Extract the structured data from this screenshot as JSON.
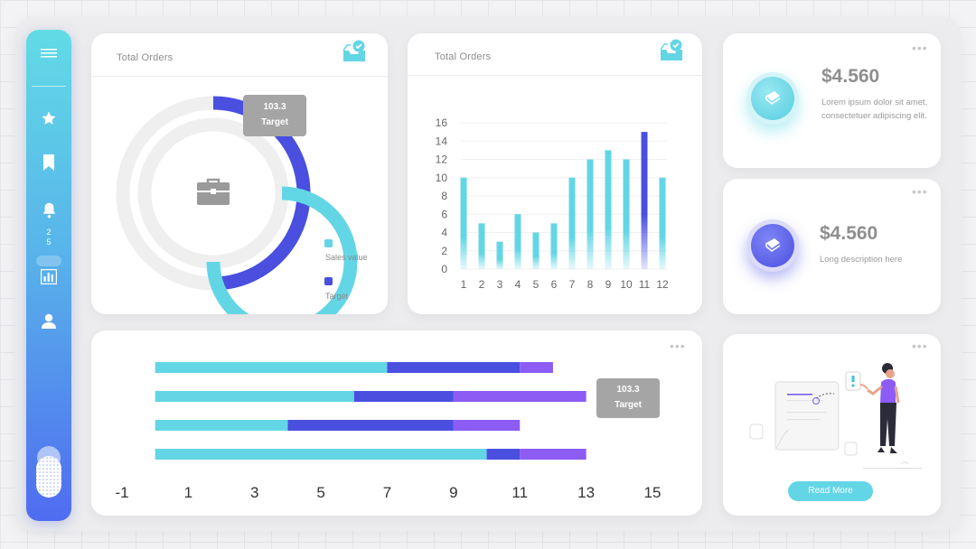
{
  "sidebar": {
    "icons": [
      "menu-icon",
      "star-icon",
      "bookmark-icon",
      "bell-icon",
      "bar-chart-icon",
      "user-icon"
    ],
    "badge": [
      "2",
      "5"
    ]
  },
  "orders_donut": {
    "title": "Total Orders",
    "icon": "inbox-check-icon",
    "center_icon": "briefcase-icon",
    "tooltip": {
      "value": "103.3",
      "label": "Target"
    },
    "legend": [
      {
        "label": "Sales value",
        "color": "#63d6e6"
      },
      {
        "label": "Target",
        "color": "#4a4fe0"
      }
    ]
  },
  "orders_bar": {
    "title": "Total Orders",
    "icon": "inbox-check-icon"
  },
  "stat_cards": [
    {
      "price": "$4.560",
      "description": "Lorem ipsum dolor sit amet, consectetuer adipiscing elit.",
      "icon": "book-icon"
    },
    {
      "price": "$4.560",
      "description": "Long description here",
      "icon": "book-icon"
    }
  ],
  "hbar_card": {
    "tooltip": {
      "value": "103.3",
      "label": "Target"
    }
  },
  "illustration_card": {
    "button_label": "Read More"
  },
  "colors": {
    "cyan": "#63d6e6",
    "blue": "#4a4fe0",
    "purple": "#8c5cf5",
    "grey": "#a5a5a5"
  },
  "chart_data": [
    {
      "type": "bar",
      "categories": [
        "1",
        "2",
        "3",
        "4",
        "5",
        "6",
        "7",
        "8",
        "9",
        "10",
        "11",
        "12"
      ],
      "values": [
        10,
        5,
        3,
        6,
        4,
        5,
        10,
        12,
        13,
        12,
        15,
        10
      ],
      "highlight_index": 10,
      "ylim": [
        0,
        16
      ],
      "yticks": [
        "0",
        "2",
        "4",
        "6",
        "8",
        "10",
        "12",
        "14",
        "16"
      ],
      "grid": true
    },
    {
      "type": "bar",
      "orientation": "horizontal",
      "stacked": true,
      "xlim": [
        -1,
        15
      ],
      "xticks": [
        "-1",
        "1",
        "3",
        "5",
        "7",
        "9",
        "11",
        "13",
        "15"
      ],
      "series": [
        {
          "values": [
            7,
            6,
            4,
            10
          ]
        },
        {
          "values": [
            4,
            3,
            5,
            1
          ]
        },
        {
          "values": [
            1,
            4,
            2,
            2
          ]
        }
      ]
    },
    {
      "type": "pie",
      "variant": "concentric-rings",
      "series": [
        {
          "values": [
            75
          ]
        },
        {
          "values": [
            50
          ]
        }
      ]
    }
  ]
}
